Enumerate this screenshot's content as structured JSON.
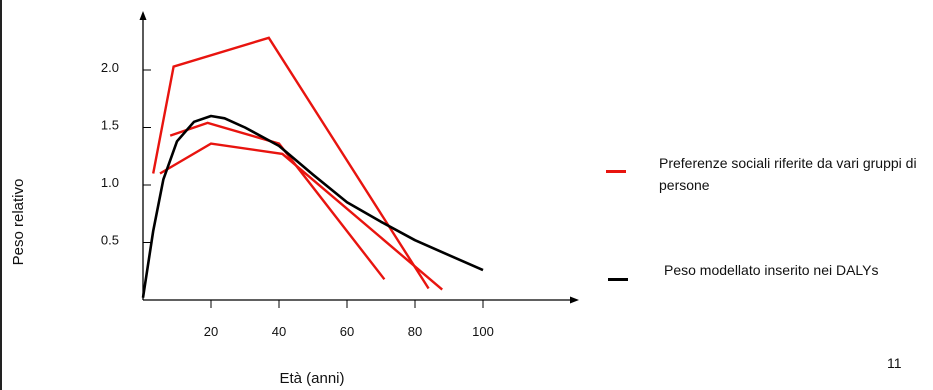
{
  "slide": {
    "page_number": "11"
  },
  "colors": {
    "social": "#e8140f",
    "model": "#000000",
    "axis": "#000000"
  },
  "chart_data": {
    "type": "line",
    "xlabel": "Età (anni)",
    "ylabel": "Peso relativo",
    "xlim": [
      0,
      105
    ],
    "ylim": [
      0,
      2.55
    ],
    "x_ticks": [
      20,
      40,
      60,
      80,
      100
    ],
    "y_ticks": [
      0.5,
      1.0,
      1.5,
      2.0
    ],
    "x_tick_labels": [
      "20",
      "40",
      "60",
      "80",
      "100"
    ],
    "y_tick_labels": [
      "0.5",
      "1.0",
      "1.5",
      "2.0"
    ],
    "series": [
      {
        "name": "Preferenze sociali riferite da vari gruppi di persone",
        "group": "social",
        "points": [
          [
            3,
            1.1
          ],
          [
            9,
            2.03
          ],
          [
            37,
            2.28
          ],
          [
            84,
            0.1
          ]
        ]
      },
      {
        "name": "Preferenze sociali riferite da vari gruppi di persone",
        "group": "social",
        "points": [
          [
            8,
            1.43
          ],
          [
            19,
            1.54
          ],
          [
            40,
            1.36
          ],
          [
            71,
            0.18
          ]
        ]
      },
      {
        "name": "Preferenze sociali riferite da vari gruppi di persone",
        "group": "social",
        "points": [
          [
            5,
            1.1
          ],
          [
            20,
            1.36
          ],
          [
            41,
            1.27
          ],
          [
            88,
            0.09
          ]
        ]
      },
      {
        "name": "Peso modellato inserito nei DALYs",
        "group": "model",
        "points": [
          [
            0,
            0.02
          ],
          [
            3,
            0.6
          ],
          [
            6,
            1.05
          ],
          [
            10,
            1.38
          ],
          [
            15,
            1.55
          ],
          [
            20,
            1.6
          ],
          [
            24,
            1.58
          ],
          [
            30,
            1.5
          ],
          [
            40,
            1.34
          ],
          [
            50,
            1.09
          ],
          [
            60,
            0.85
          ],
          [
            70,
            0.68
          ],
          [
            80,
            0.52
          ],
          [
            90,
            0.39
          ],
          [
            100,
            0.26
          ]
        ]
      }
    ],
    "legend": [
      {
        "label": "Preferenze sociali riferite da vari gruppi di persone",
        "color": "#e8140f"
      },
      {
        "label": "Peso modellato inserito nei DALYs",
        "color": "#000000"
      }
    ],
    "legend_position": "right"
  }
}
